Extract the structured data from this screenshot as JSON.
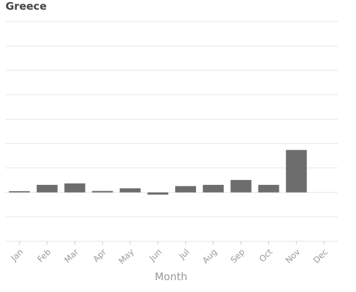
{
  "chart_data": {
    "type": "bar",
    "title": "Greece",
    "x_label": "Month",
    "categories": [
      "Jan",
      "Feb",
      "Mar",
      "Apr",
      "May",
      "Jun",
      "Jul",
      "Aug",
      "Sep",
      "Oct",
      "Nov",
      "Dec"
    ],
    "values": [
      0.05,
      0.31,
      0.37,
      0.06,
      0.17,
      -0.09,
      0.26,
      0.31,
      0.51,
      0.31,
      1.74,
      null
    ],
    "color": "#6d6d6d",
    "ylim": [
      -2,
      7
    ],
    "yticks": [
      -2,
      -1,
      0,
      1,
      2,
      3,
      4,
      5,
      6,
      7
    ],
    "grid": true
  }
}
